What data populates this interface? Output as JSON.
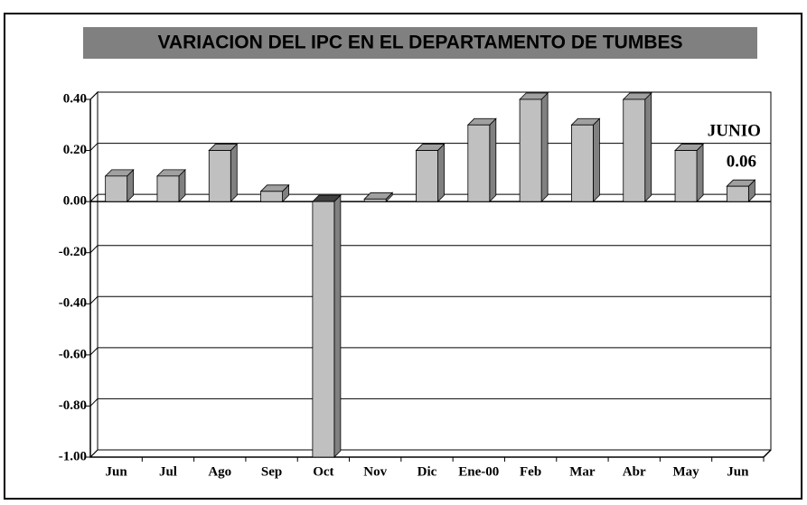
{
  "chart_data": {
    "type": "bar3d",
    "title": "VARIACION DEL IPC EN EL DEPARTAMENTO DE TUMBES",
    "categories": [
      "Jun",
      "Jul",
      "Ago",
      "Sep",
      "Oct",
      "Nov",
      "Dic",
      "Ene-00",
      "Feb",
      "Mar",
      "Abr",
      "May",
      "Jun"
    ],
    "values": [
      0.1,
      0.1,
      0.2,
      0.04,
      -1.0,
      0.01,
      0.2,
      0.3,
      0.4,
      0.3,
      0.4,
      0.2,
      0.06
    ],
    "color": "#c0c0c0",
    "ylim": [
      -1.0,
      0.4
    ],
    "yticks": [
      {
        "value": 0.4,
        "label": "0.40"
      },
      {
        "value": 0.2,
        "label": "0.20"
      },
      {
        "value": 0.0,
        "label": "0.00"
      },
      {
        "value": -0.2,
        "label": "-0.20"
      },
      {
        "value": -0.4,
        "label": "-0.40"
      },
      {
        "value": -0.6,
        "label": "-0.60"
      },
      {
        "value": -0.8,
        "label": "-0.80"
      },
      {
        "value": -1.0,
        "label": "-1.00"
      }
    ],
    "grid": true,
    "annotation": "JUNIO"
  }
}
